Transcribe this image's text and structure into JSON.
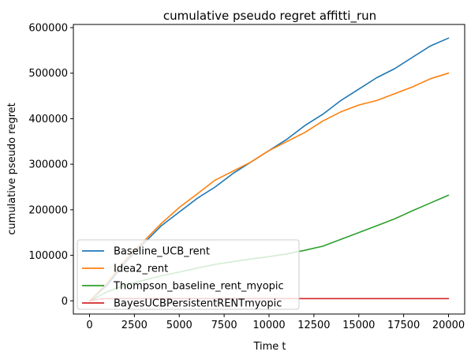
{
  "chart_data": {
    "type": "line",
    "title": "cumulative pseudo regret affitti_run",
    "xlabel": "Time t",
    "ylabel": "cumulative pseudo regret",
    "xlim": [
      -900,
      20900
    ],
    "ylim": [
      -29000,
      607000
    ],
    "xticks": [
      0,
      2500,
      5000,
      7500,
      10000,
      12500,
      15000,
      17500,
      20000
    ],
    "yticks": [
      0,
      100000,
      200000,
      300000,
      400000,
      500000,
      600000
    ],
    "xtick_labels": [
      "0",
      "2500",
      "5000",
      "7500",
      "10000",
      "12500",
      "15000",
      "17500",
      "20000"
    ],
    "ytick_labels": [
      "0",
      "100000",
      "200000",
      "300000",
      "400000",
      "500000",
      "600000"
    ],
    "grid": false,
    "legend_position": "lower-left",
    "series": [
      {
        "name": "Baseline_UCB_rent",
        "color": "#1f77b4",
        "x": [
          0,
          1000,
          2000,
          3000,
          4000,
          5000,
          6000,
          7000,
          8000,
          9000,
          10000,
          11000,
          12000,
          13000,
          14000,
          15000,
          16000,
          17000,
          18000,
          19000,
          20000
        ],
        "y": [
          0,
          35000,
          85000,
          125000,
          165000,
          195000,
          225000,
          250000,
          280000,
          305000,
          330000,
          355000,
          385000,
          410000,
          440000,
          465000,
          490000,
          510000,
          535000,
          560000,
          577000
        ]
      },
      {
        "name": "Idea2_rent",
        "color": "#ff7f0e",
        "x": [
          0,
          1000,
          2000,
          3000,
          4000,
          5000,
          6000,
          7000,
          8000,
          9000,
          10000,
          11000,
          12000,
          13000,
          14000,
          15000,
          16000,
          17000,
          18000,
          19000,
          20000
        ],
        "y": [
          0,
          40000,
          90000,
          130000,
          170000,
          205000,
          235000,
          265000,
          285000,
          305000,
          330000,
          350000,
          370000,
          395000,
          415000,
          430000,
          440000,
          455000,
          470000,
          488000,
          500000
        ]
      },
      {
        "name": "Thompson_baseline_rent_myopic",
        "color": "#2ca02c",
        "x": [
          0,
          1000,
          2000,
          3000,
          4000,
          5000,
          6000,
          7000,
          8000,
          9000,
          10000,
          11000,
          12000,
          13000,
          14000,
          15000,
          16000,
          17000,
          18000,
          19000,
          20000
        ],
        "y": [
          0,
          20000,
          35000,
          45000,
          55000,
          63000,
          72000,
          80000,
          86000,
          92000,
          97000,
          103000,
          111000,
          120000,
          135000,
          150000,
          165000,
          180000,
          198000,
          215000,
          232000
        ]
      },
      {
        "name": "BayesUCBPersistentRENTmyopic",
        "color": "#d62728",
        "x": [
          0,
          300,
          700,
          1000,
          5000,
          10000,
          15000,
          20000
        ],
        "y": [
          0,
          2500,
          4500,
          5000,
          5000,
          5000,
          5000,
          5000
        ]
      }
    ]
  }
}
